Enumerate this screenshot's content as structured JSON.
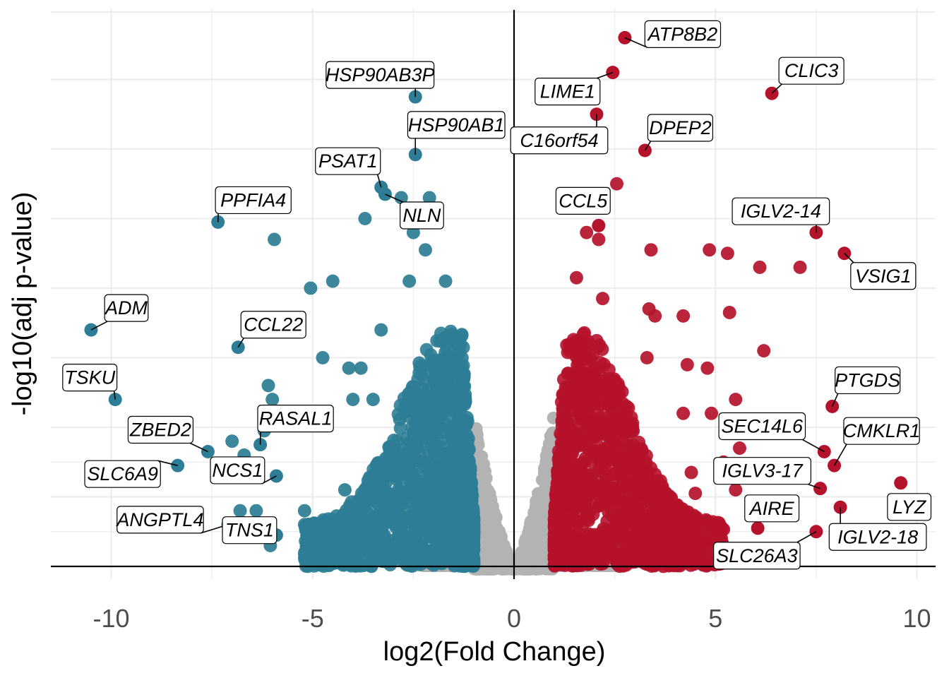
{
  "chart_data": {
    "type": "scatter",
    "title": "",
    "xlabel": "log2(Fold Change)",
    "ylabel": "-log10(adj p-value)",
    "xlim": [
      -11.5,
      10.5
    ],
    "ylim": [
      -0.12,
      8
    ],
    "x_ticks": [
      -10,
      -5,
      0,
      5,
      10
    ],
    "x_tick_labels": [
      "-10",
      "-5",
      "0",
      "5",
      "10"
    ],
    "grid": true,
    "legend": "none",
    "colors": {
      "down": "#2c7d95",
      "up": "#b5122b",
      "ns": "#b3b3b3",
      "grid": "#ebebeb",
      "axis": "#000000"
    },
    "labeled_genes": [
      {
        "gene": "ATP8B2",
        "x": 2.75,
        "y": 7.6,
        "group": "up"
      },
      {
        "gene": "CLIC3",
        "x": 6.4,
        "y": 6.8,
        "group": "up"
      },
      {
        "gene": "LIME1",
        "x": 2.45,
        "y": 7.1,
        "group": "up"
      },
      {
        "gene": "C16orf54",
        "x": 2.05,
        "y": 6.5,
        "group": "up"
      },
      {
        "gene": "DPEP2",
        "x": 3.25,
        "y": 5.98,
        "group": "up"
      },
      {
        "gene": "CCL5",
        "x": 2.1,
        "y": 4.9,
        "group": "up"
      },
      {
        "gene": "IGLV2-14",
        "x": 7.5,
        "y": 4.8,
        "group": "up"
      },
      {
        "gene": "VSIG1",
        "x": 8.2,
        "y": 4.5,
        "group": "up"
      },
      {
        "gene": "PTGDS",
        "x": 7.9,
        "y": 2.3,
        "group": "up"
      },
      {
        "gene": "SEC14L6",
        "x": 7.7,
        "y": 1.65,
        "group": "up"
      },
      {
        "gene": "CMKLR1",
        "x": 7.95,
        "y": 1.45,
        "group": "up"
      },
      {
        "gene": "IGLV3-17",
        "x": 7.6,
        "y": 1.12,
        "group": "up"
      },
      {
        "gene": "LYZ",
        "x": 9.6,
        "y": 1.2,
        "group": "up"
      },
      {
        "gene": "AIRE",
        "x": 6.05,
        "y": 0.55,
        "group": "up"
      },
      {
        "gene": "IGLV2-18",
        "x": 8.1,
        "y": 0.85,
        "group": "up"
      },
      {
        "gene": "SLC26A3",
        "x": 7.5,
        "y": 0.5,
        "group": "up"
      },
      {
        "gene": "HSP90AB3P",
        "x": -2.45,
        "y": 6.75,
        "group": "down"
      },
      {
        "gene": "HSP90AB1",
        "x": -2.45,
        "y": 5.92,
        "group": "down"
      },
      {
        "gene": "PSAT1",
        "x": -3.3,
        "y": 5.45,
        "group": "down"
      },
      {
        "gene": "NLN",
        "x": -3.2,
        "y": 5.35,
        "group": "down"
      },
      {
        "gene": "PPFIA4",
        "x": -7.35,
        "y": 4.95,
        "group": "down"
      },
      {
        "gene": "ADM",
        "x": -10.5,
        "y": 3.4,
        "group": "down"
      },
      {
        "gene": "CCL22",
        "x": -6.85,
        "y": 3.15,
        "group": "down"
      },
      {
        "gene": "TSKU",
        "x": -9.9,
        "y": 2.4,
        "group": "down"
      },
      {
        "gene": "ZBED2",
        "x": -7.6,
        "y": 1.65,
        "group": "down"
      },
      {
        "gene": "RASAL1",
        "x": -6.3,
        "y": 1.75,
        "group": "down"
      },
      {
        "gene": "SLC6A9",
        "x": -8.35,
        "y": 1.45,
        "group": "down"
      },
      {
        "gene": "NCS1",
        "x": -5.9,
        "y": 1.3,
        "group": "down"
      },
      {
        "gene": "ANGPTL4",
        "x": -7.1,
        "y": 0.6,
        "group": "down"
      },
      {
        "gene": "TNS1",
        "x": -5.9,
        "y": 0.45,
        "group": "down"
      }
    ],
    "other_points": [
      {
        "x": -5.95,
        "y": 4.7
      },
      {
        "x": -3.7,
        "y": 5.0
      },
      {
        "x": -2.8,
        "y": 5.3
      },
      {
        "x": -2.1,
        "y": 5.3
      },
      {
        "x": -2.5,
        "y": 4.8
      },
      {
        "x": -2.2,
        "y": 4.55
      },
      {
        "x": -5.05,
        "y": 4.0
      },
      {
        "x": -4.5,
        "y": 4.1
      },
      {
        "x": -2.6,
        "y": 4.1
      },
      {
        "x": -1.7,
        "y": 4.1
      },
      {
        "x": -3.3,
        "y": 3.4
      },
      {
        "x": -4.75,
        "y": 3.0
      },
      {
        "x": -4.1,
        "y": 2.85
      },
      {
        "x": -3.8,
        "y": 2.85
      },
      {
        "x": -6.1,
        "y": 2.6
      },
      {
        "x": -6.0,
        "y": 2.4
      },
      {
        "x": -4.0,
        "y": 2.4
      },
      {
        "x": -3.5,
        "y": 2.4
      },
      {
        "x": -7.0,
        "y": 1.8
      },
      {
        "x": -6.2,
        "y": 1.95
      },
      {
        "x": -7.3,
        "y": 1.3
      },
      {
        "x": -6.7,
        "y": 1.6
      },
      {
        "x": -6.4,
        "y": 0.8
      },
      {
        "x": -6.05,
        "y": 0.3
      },
      {
        "x": -6.8,
        "y": 0.8
      },
      {
        "x": -4.6,
        "y": 0.25
      },
      {
        "x": -5.2,
        "y": 0.8
      },
      {
        "x": -4.2,
        "y": 1.1
      },
      {
        "x": 2.55,
        "y": 5.5
      },
      {
        "x": 1.8,
        "y": 4.8
      },
      {
        "x": 2.1,
        "y": 4.7
      },
      {
        "x": 3.4,
        "y": 4.55
      },
      {
        "x": 4.85,
        "y": 4.55
      },
      {
        "x": 5.3,
        "y": 4.5
      },
      {
        "x": 6.1,
        "y": 4.3
      },
      {
        "x": 7.1,
        "y": 4.3
      },
      {
        "x": 1.55,
        "y": 4.15
      },
      {
        "x": 2.2,
        "y": 3.85
      },
      {
        "x": 3.35,
        "y": 3.7
      },
      {
        "x": 3.5,
        "y": 3.6
      },
      {
        "x": 4.2,
        "y": 3.6
      },
      {
        "x": 5.35,
        "y": 3.65
      },
      {
        "x": 6.2,
        "y": 3.1
      },
      {
        "x": 3.3,
        "y": 3.0
      },
      {
        "x": 4.3,
        "y": 2.9
      },
      {
        "x": 4.8,
        "y": 2.85
      },
      {
        "x": 5.5,
        "y": 2.4
      },
      {
        "x": 4.9,
        "y": 2.2
      },
      {
        "x": 4.2,
        "y": 2.2
      },
      {
        "x": 5.6,
        "y": 1.7
      },
      {
        "x": 5.2,
        "y": 1.5
      },
      {
        "x": 5.5,
        "y": 1.1
      },
      {
        "x": 4.4,
        "y": 1.35
      },
      {
        "x": 4.5,
        "y": 1.05
      },
      {
        "x": 6.1,
        "y": 0.85
      },
      {
        "x": 4.7,
        "y": 0.5
      },
      {
        "x": 4.85,
        "y": 0.2
      }
    ]
  }
}
